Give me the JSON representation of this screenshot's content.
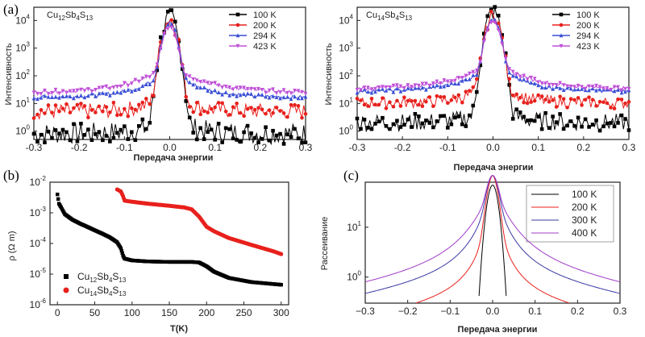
{
  "chart_data": [
    {
      "panel": "a-left",
      "panel_label": "(a)",
      "type": "scatter",
      "annotation": {
        "base": "Cu",
        "sub1": "12",
        "mid1": "Sb",
        "sub2": "4",
        "mid2": "S",
        "sub3": "13"
      },
      "xlabel": "Передача энергии",
      "ylabel": "Интенсивность",
      "xlim": [
        -0.3,
        0.3
      ],
      "ylim": [
        0.5,
        30000
      ],
      "yscale": "log",
      "xticks": [
        "-0.3",
        "-0.2",
        "-0.1",
        "0.0",
        "0.1",
        "0.2",
        "0.3"
      ],
      "yticks": [
        {
          "v": 1,
          "m": "10",
          "e": "0"
        },
        {
          "v": 10,
          "m": "10",
          "e": "1"
        },
        {
          "v": 100,
          "m": "10",
          "e": "2"
        },
        {
          "v": 1000,
          "m": "10",
          "e": "3"
        },
        {
          "v": 10000,
          "m": "10",
          "e": "4"
        }
      ],
      "legend_position": "top-right",
      "series": [
        {
          "name": "100 K",
          "color": "#000000",
          "marker": "square",
          "peak": 12000,
          "bg": 0.8,
          "g": 0.01,
          "l": 0.018,
          "n": 0.55
        },
        {
          "name": "200 K",
          "color": "#e8201c",
          "marker": "circle",
          "peak": 11000,
          "bg": 5,
          "g": 0.01,
          "l": 0.02,
          "n": 0.4
        },
        {
          "name": "294 K",
          "color": "#3b4fd6",
          "marker": "triangle-up",
          "peak": 8000,
          "bg": 15,
          "g": 0.01,
          "l": 0.04,
          "n": 0.1
        },
        {
          "name": "423 K",
          "color": "#c050d8",
          "marker": "triangle-down",
          "peak": 6000,
          "bg": 22,
          "g": 0.01,
          "l": 0.05,
          "n": 0.1
        }
      ]
    },
    {
      "panel": "a-right",
      "type": "scatter",
      "annotation": {
        "base": "Cu",
        "sub1": "14",
        "mid1": "Sb",
        "sub2": "4",
        "mid2": "S",
        "sub3": "13"
      },
      "xlabel": "Передача энергии",
      "ylabel": "Интенсивность",
      "xlim": [
        -0.3,
        0.3
      ],
      "ylim": [
        0.5,
        30000
      ],
      "yscale": "log",
      "xticks": [
        "-0.3",
        "-0.2",
        "-0.1",
        "0.0",
        "0.1",
        "0.2",
        "0.3"
      ],
      "yticks": [
        {
          "v": 1,
          "m": "10",
          "e": "0"
        },
        {
          "v": 10,
          "m": "10",
          "e": "1"
        },
        {
          "v": 100,
          "m": "10",
          "e": "2"
        },
        {
          "v": 1000,
          "m": "10",
          "e": "3"
        },
        {
          "v": 10000,
          "m": "10",
          "e": "4"
        }
      ],
      "legend_position": "top-right",
      "series": [
        {
          "name": "100 K",
          "color": "#000000",
          "marker": "square",
          "peak": 20000,
          "bg": 2,
          "g": 0.01,
          "l": 0.018,
          "n": 0.45
        },
        {
          "name": "200 K",
          "color": "#e8201c",
          "marker": "circle",
          "peak": 15000,
          "bg": 10,
          "g": 0.01,
          "l": 0.025,
          "n": 0.3
        },
        {
          "name": "294 K",
          "color": "#3b4fd6",
          "marker": "triangle-up",
          "peak": 12000,
          "bg": 25,
          "g": 0.01,
          "l": 0.04,
          "n": 0.1
        },
        {
          "name": "423 K",
          "color": "#c050d8",
          "marker": "triangle-down",
          "peak": 10000,
          "bg": 30,
          "g": 0.01,
          "l": 0.05,
          "n": 0.1
        }
      ]
    },
    {
      "panel": "b",
      "panel_label": "(b)",
      "type": "scatter",
      "xlabel": "T(K)",
      "ylabel": "ρ (Ω m)",
      "xlim": [
        -10,
        310
      ],
      "ylim": [
        1e-06,
        0.01
      ],
      "yscale": "log",
      "xticks": [
        "0",
        "50",
        "100",
        "150",
        "200",
        "250",
        "300"
      ],
      "xtick_values": [
        0,
        50,
        100,
        150,
        200,
        250,
        300
      ],
      "yticks": [
        {
          "v": 1e-06,
          "m": "10",
          "e": "-6"
        },
        {
          "v": 1e-05,
          "m": "10",
          "e": "-5"
        },
        {
          "v": 0.0001,
          "m": "10",
          "e": "-4"
        },
        {
          "v": 0.001,
          "m": "10",
          "e": "-3"
        },
        {
          "v": 0.01,
          "m": "10",
          "e": "-2"
        }
      ],
      "legend_position": "bottom-left",
      "series": [
        {
          "name_parts": {
            "base": "Cu",
            "sub1": "12",
            "mid1": "Sb",
            "sub2": "4",
            "mid2": "S",
            "sub3": "13"
          },
          "color": "#000000",
          "marker": "square",
          "x": [
            0,
            2,
            5,
            10,
            20,
            30,
            40,
            50,
            60,
            70,
            80,
            85,
            88,
            90,
            95,
            100,
            120,
            150,
            180,
            190,
            200,
            210,
            230,
            260,
            300
          ],
          "y": [
            0.004,
            0.002,
            0.0015,
            0.0009,
            0.0006,
            0.00045,
            0.00035,
            0.00027,
            0.00021,
            0.00016,
            0.00011,
            7e-05,
            4e-05,
            3.2e-05,
            3e-05,
            2.8e-05,
            2.6e-05,
            2.5e-05,
            2.5e-05,
            2.4e-05,
            1.8e-05,
            1.2e-05,
            7.5e-06,
            5.5e-06,
            4.5e-06
          ]
        },
        {
          "name_parts": {
            "base": "Cu",
            "sub1": "14",
            "mid1": "Sb",
            "sub2": "4",
            "mid2": "S",
            "sub3": "13"
          },
          "color": "#e8201c",
          "marker": "circle",
          "x": [
            80,
            85,
            88,
            90,
            100,
            120,
            150,
            170,
            180,
            190,
            200,
            210,
            230,
            260,
            290,
            300
          ],
          "y": [
            0.0058,
            0.005,
            0.0035,
            0.0025,
            0.0023,
            0.002,
            0.0017,
            0.0015,
            0.0013,
            0.00075,
            0.00035,
            0.00025,
            0.00015,
            9e-05,
            5.5e-05,
            4.5e-05
          ]
        }
      ]
    },
    {
      "panel": "c",
      "panel_label": "(c)",
      "type": "line",
      "xlabel": "Передача энергии",
      "ylabel": "Рассеивание",
      "xlim": [
        -0.3,
        0.3
      ],
      "ylim": [
        0.3,
        80
      ],
      "yscale": "log",
      "xticks": [
        "−0.3",
        "−0.2",
        "−0.1",
        "0.0",
        "0.1",
        "0.2",
        "0.3"
      ],
      "yticks": [
        {
          "v": 1,
          "m": "10",
          "e": "0"
        },
        {
          "v": 10,
          "m": "10",
          "e": "1"
        }
      ],
      "legend_position": "top-right",
      "series": [
        {
          "name": "100 K",
          "color": "#000000",
          "peak": 70,
          "bg": 0,
          "g": 0.01,
          "l": 0.0,
          "n": 0
        },
        {
          "name": "200 K",
          "color": "#e8201c",
          "peak": 70,
          "bg": 0.0,
          "g": 0.01,
          "l": 0.01,
          "tail": 1.0,
          "n": 0
        },
        {
          "name": "300 K",
          "color": "#3b3ba6",
          "peak": 70,
          "bg": 0.0,
          "g": 0.01,
          "l": 0.02,
          "tail": 2.5,
          "n": 0
        },
        {
          "name": "400 K",
          "color": "#a03cc8",
          "peak": 70,
          "bg": 0.0,
          "g": 0.01,
          "l": 0.03,
          "tail": 3.5,
          "n": 0
        }
      ]
    }
  ]
}
